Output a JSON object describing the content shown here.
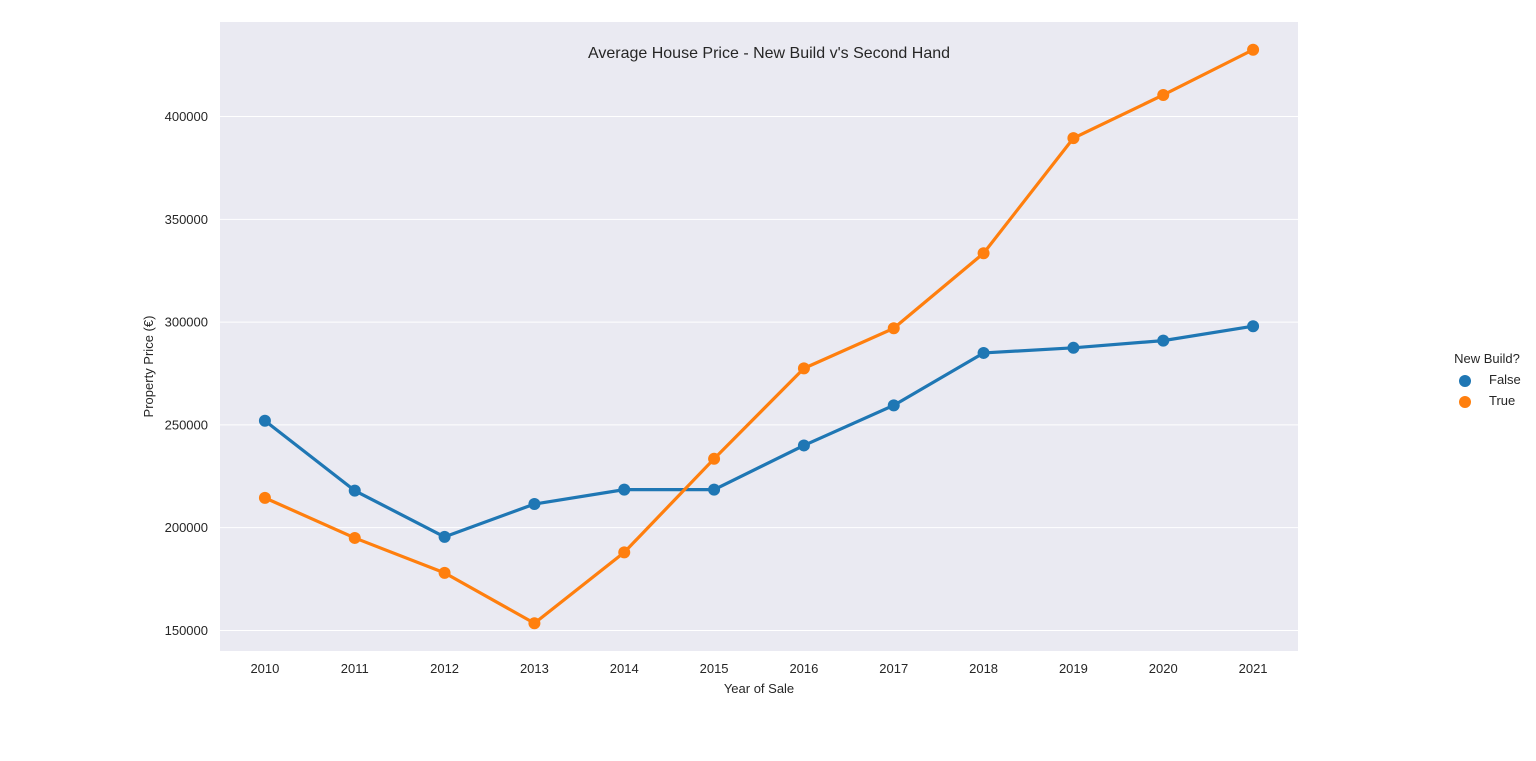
{
  "chart_data": {
    "type": "line",
    "title": "Average House Price - New Build v's Second Hand",
    "xlabel": "Year of Sale",
    "ylabel": "Property Price (€)",
    "categories": [
      "2010",
      "2011",
      "2012",
      "2013",
      "2014",
      "2015",
      "2016",
      "2017",
      "2018",
      "2019",
      "2020",
      "2021"
    ],
    "yticks": [
      150000,
      200000,
      250000,
      300000,
      350000,
      400000
    ],
    "ylim": [
      140000,
      446000
    ],
    "grid": true,
    "legend": {
      "title": "New Build?",
      "placement": "right"
    },
    "series": [
      {
        "name": "False",
        "color": "#1f77b4",
        "values": [
          252000,
          218000,
          195500,
          211500,
          218500,
          218500,
          240000,
          259500,
          285000,
          287500,
          291000,
          298000
        ]
      },
      {
        "name": "True",
        "color": "#ff7f0e",
        "values": [
          214500,
          195000,
          178000,
          153500,
          188000,
          233500,
          277500,
          297000,
          333500,
          389500,
          410500,
          432500
        ]
      }
    ],
    "background": "#eaeaf2",
    "grid_color": "#ffffff"
  }
}
